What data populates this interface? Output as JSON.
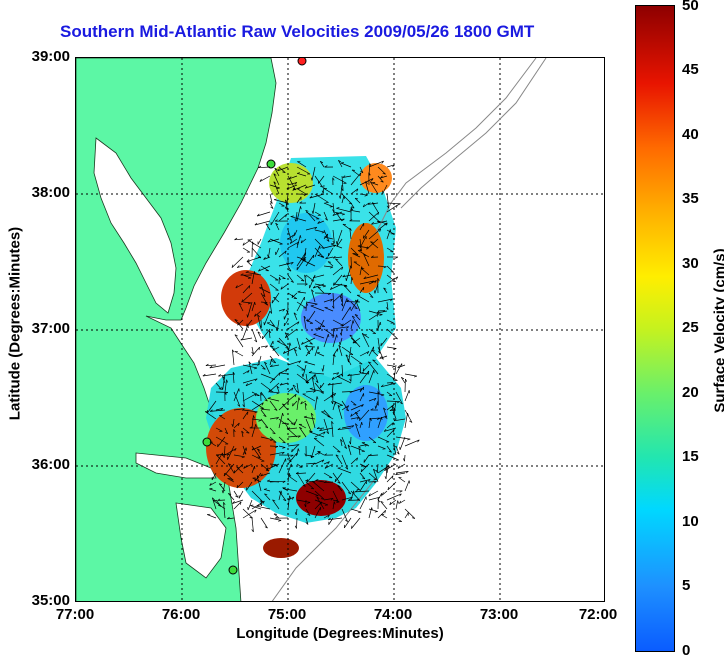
{
  "title": "Southern Mid-Atlantic Raw Velocities 2009/05/26 1800 GMT",
  "axes": {
    "xlabel": "Longitude (Degrees:Minutes)",
    "ylabel": "Latitude (Degrees:Minutes)",
    "xticks": [
      "77:00",
      "76:00",
      "75:00",
      "74:00",
      "73:00",
      "72:00"
    ],
    "yticks": [
      "39:00",
      "38:00",
      "37:00",
      "36:00",
      "35:00"
    ],
    "xlim": [
      -77,
      -72
    ],
    "ylim": [
      35,
      39
    ]
  },
  "colorbar": {
    "label": "Surface Velocity (cm/s)",
    "ticks": [
      "50",
      "45",
      "40",
      "35",
      "30",
      "25",
      "20",
      "15",
      "10",
      "5",
      "0"
    ],
    "range": [
      0,
      50
    ]
  },
  "colors": {
    "land": "#5cf7a5",
    "title": "#1a1ae0",
    "vector": "#000000",
    "grid": "#000000"
  }
}
